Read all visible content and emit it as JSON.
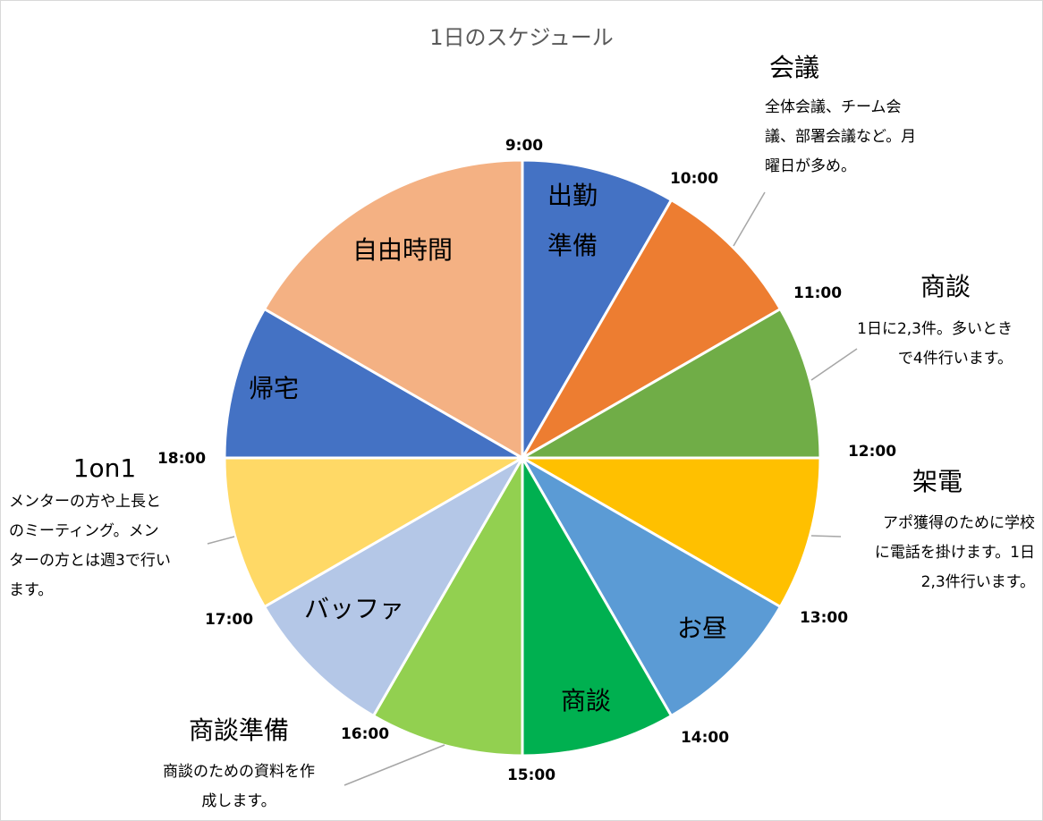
{
  "chart_data": {
    "type": "pie",
    "title": "1日のスケジュール",
    "categories": [
      "出勤準備",
      "会議",
      "商談",
      "架電",
      "お昼",
      "商談",
      "商談準備",
      "バッファ",
      "1on1",
      "帰宅",
      "自由時間"
    ],
    "values": [
      1,
      1,
      1,
      1,
      1,
      1,
      1,
      1,
      1,
      1,
      2
    ],
    "colors": [
      "#4472C4",
      "#ED7D31",
      "#70AD47",
      "#FFC000",
      "#5B9BD5",
      "#00B050",
      "#92D050",
      "#B4C7E7",
      "#FFD966",
      "#4472C4",
      "#F4B183"
    ],
    "inner_labels": [
      [
        "出勤",
        "準備"
      ],
      [],
      [],
      [],
      [
        "お昼"
      ],
      [
        "商談"
      ],
      [],
      [
        "バッファ"
      ],
      [],
      [
        "帰宅"
      ],
      [
        "自由時間"
      ]
    ],
    "time_labels": [
      "9:00",
      "10:00",
      "11:00",
      "12:00",
      "13:00",
      "14:00",
      "15:00",
      "16:00",
      "17:00",
      "18:00"
    ],
    "start_angle_deg": 0,
    "direction": "clockwise",
    "annotations": [
      {
        "heading": "会議",
        "lines": [
          "全体会議、チーム会",
          "議、部署会議など。月",
          "曜日が多め。"
        ]
      },
      {
        "heading": "商談",
        "lines": [
          "1日に2,3件。多いとき",
          "で4件行います。"
        ]
      },
      {
        "heading": "架電",
        "lines": [
          "アポ獲得のために学校",
          "に電話を掛けます。1日",
          "2,3件行います。"
        ]
      },
      {
        "heading": "商談準備",
        "lines": [
          "商談のための資料を作",
          "成します。"
        ]
      },
      {
        "heading": "1on1",
        "lines": [
          "メンターの方や上長と",
          "のミーティング。メン",
          "ターの方とは週3で行い",
          "ます。"
        ]
      }
    ]
  }
}
